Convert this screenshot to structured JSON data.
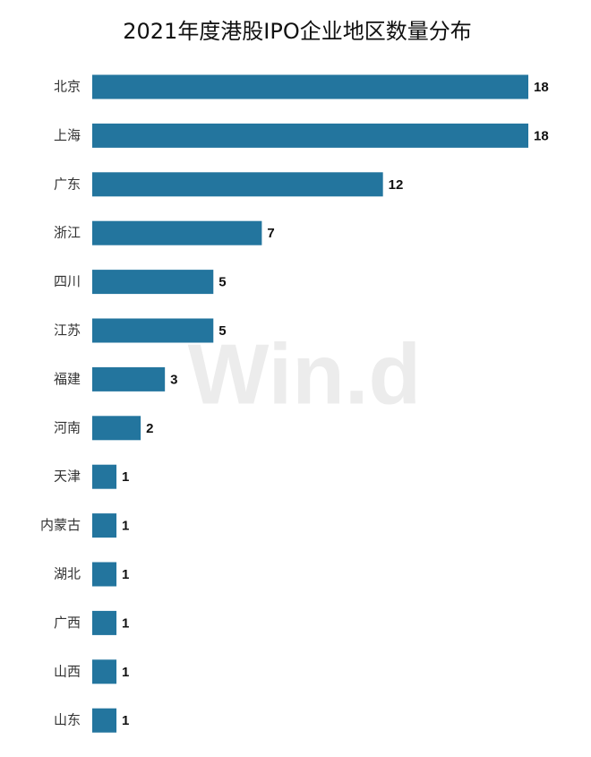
{
  "chart_data": {
    "type": "bar",
    "orientation": "horizontal",
    "title": "2021年度港股IPO企业地区数量分布",
    "watermark": "Win.d",
    "categories": [
      "北京",
      "上海",
      "广东",
      "浙江",
      "四川",
      "江苏",
      "福建",
      "河南",
      "天津",
      "内蒙古",
      "湖北",
      "广西",
      "山西",
      "山东"
    ],
    "values": [
      18,
      18,
      12,
      7,
      5,
      5,
      3,
      2,
      1,
      1,
      1,
      1,
      1,
      1
    ],
    "color": "#23759e"
  }
}
